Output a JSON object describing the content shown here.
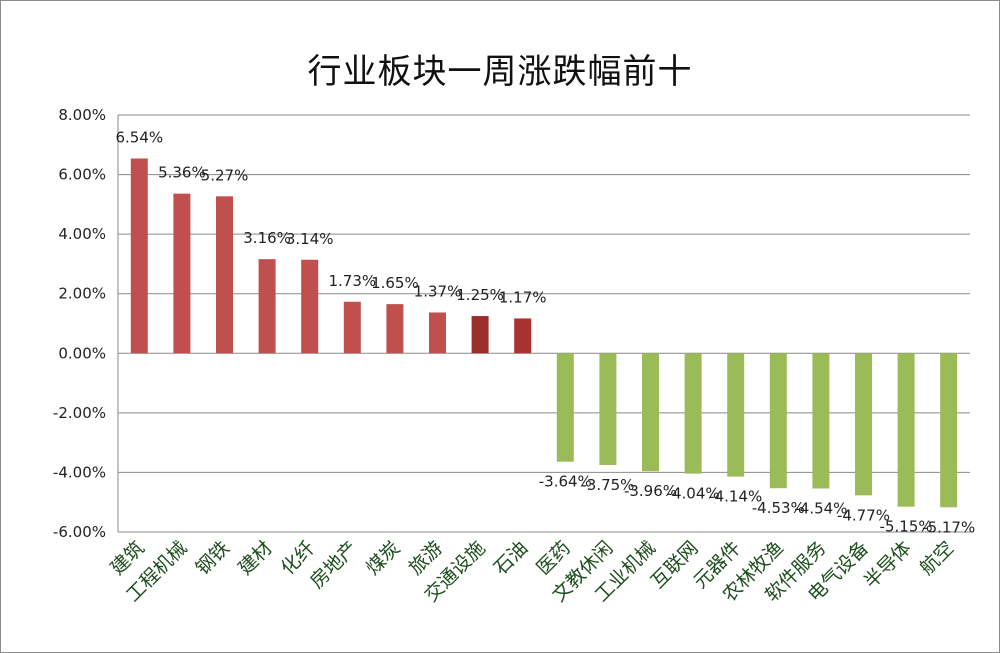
{
  "chart_data": {
    "type": "bar",
    "title": "行业板块一周涨跌幅前十",
    "xlabel": "",
    "ylabel": "",
    "ylim": [
      -6,
      8
    ],
    "ytick_labels": [
      "8.00%",
      "6.00%",
      "4.00%",
      "2.00%",
      "0.00%",
      "-2.00%",
      "-4.00%",
      "-6.00%"
    ],
    "categories": [
      "建筑",
      "工程机械",
      "钢铁",
      "建材",
      "化纤",
      "房地产",
      "煤炭",
      "旅游",
      "交通设施",
      "石油",
      "医药",
      "文教休闲",
      "工业机械",
      "互联网",
      "元器件",
      "农林牧渔",
      "软件服务",
      "电气设备",
      "半导体",
      "航空"
    ],
    "values": [
      6.54,
      5.36,
      5.27,
      3.16,
      3.14,
      1.73,
      1.65,
      1.37,
      1.25,
      1.17,
      -3.64,
      -3.75,
      -3.96,
      -4.04,
      -4.14,
      -4.53,
      -4.54,
      -4.77,
      -5.15,
      -5.17
    ],
    "value_labels": [
      "6.54%",
      "5.36%",
      "5.27%",
      "3.16%",
      "3.14%",
      "1.73%",
      "1.65%",
      "1.37%",
      "1.25%",
      "1.17%",
      "-3.64%",
      "-3.75%",
      "-3.96%",
      "-4.04%",
      "-4.14%",
      "-4.53%",
      "-4.54%",
      "-4.77%",
      "-5.15%",
      "-5.17%"
    ],
    "bar_colors": [
      "#c0504d",
      "#c0504d",
      "#c0504d",
      "#c0504d",
      "#c0504d",
      "#c0504d",
      "#c0504d",
      "#c0504d",
      "#9b2d2a",
      "#a83330",
      "#9bbb59",
      "#9bbb59",
      "#9bbb59",
      "#9bbb59",
      "#9bbb59",
      "#9bbb59",
      "#9bbb59",
      "#9bbb59",
      "#9bbb59",
      "#9bbb59"
    ],
    "grid": true,
    "legend": "none"
  }
}
